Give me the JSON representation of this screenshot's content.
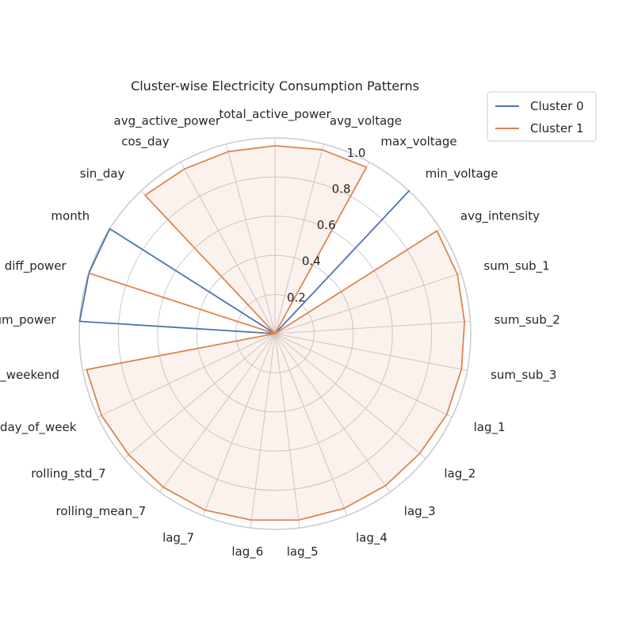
{
  "chart_data": {
    "type": "radar",
    "title": "Cluster-wise Electricity Consumption Patterns",
    "categories": [
      "total_active_power",
      "avg_voltage",
      "max_voltage",
      "min_voltage",
      "avg_intensity",
      "sum_sub_1",
      "sum_sub_2",
      "sum_sub_3",
      "lag_1",
      "lag_2",
      "lag_3",
      "lag_4",
      "lag_5",
      "lag_6",
      "lag_7",
      "rolling_mean_7",
      "rolling_std_7",
      "day_of_week",
      "is_weekend",
      "cumsum_power",
      "diff_power",
      "month",
      "sin_day",
      "cos_day",
      "avg_active_power"
    ],
    "rlim": [
      0,
      1.0
    ],
    "rticks": [
      0.2,
      0.4,
      0.6,
      0.8,
      1.0
    ],
    "rtick_labels": [
      "0.2",
      "0.4",
      "0.6",
      "0.8",
      "1.0"
    ],
    "series": [
      {
        "name": "Cluster 0",
        "color": "#4c72b0",
        "fill": false,
        "values": [
          0,
          0,
          0,
          1.0,
          0,
          0,
          0,
          0,
          0,
          0,
          0,
          0,
          0,
          0,
          0,
          0,
          0,
          0,
          0,
          1.0,
          1.0,
          1.0,
          0,
          0,
          0
        ]
      },
      {
        "name": "Cluster 1",
        "color": "#dd8452",
        "fill": true,
        "fill_opacity": 0.1,
        "values": [
          0.96,
          0.97,
          0.97,
          0,
          0.98,
          0.98,
          0.97,
          0.97,
          0.97,
          0.96,
          0.96,
          0.96,
          0.96,
          0.96,
          0.97,
          0.97,
          0.97,
          0.98,
          0.98,
          0,
          1.0,
          0,
          0.97,
          0.96,
          0.96
        ]
      }
    ],
    "grid": true,
    "legend_position": "top-right"
  }
}
